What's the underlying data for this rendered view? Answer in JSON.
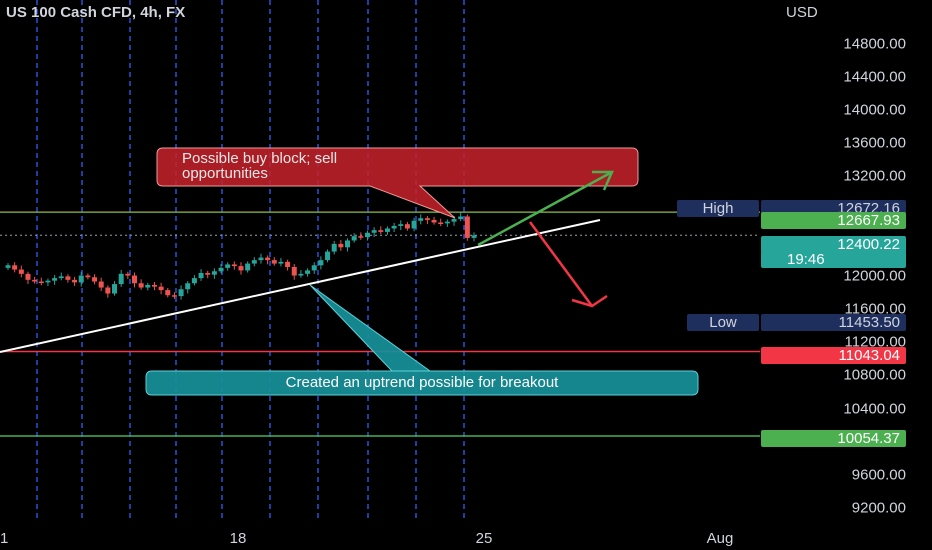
{
  "header": {
    "title": "US 100 Cash CFD, 4h, FX",
    "currency": "USD"
  },
  "colors": {
    "background": "#000000",
    "up": "#26a69a",
    "down": "#ef5350",
    "high_line": "#f59d2c",
    "low_line": "#f23645",
    "support_line": "#4caf50",
    "trend_line": "#ffffff",
    "grid": "#2962ff",
    "label_navy": "#1e2f5e"
  },
  "y_axis": {
    "ticks": [
      "14800.00",
      "14400.00",
      "14000.00",
      "13600.00",
      "13200.00",
      "12000.00",
      "11600.00",
      "11200.00",
      "10800.00",
      "10400.00",
      "9600.00",
      "9200.00"
    ],
    "visible_range": [
      9050,
      15150
    ]
  },
  "x_axis": {
    "ticks": [
      "1",
      "18",
      "25",
      "Aug"
    ]
  },
  "price_labels": {
    "high": {
      "tag": "High",
      "value": "12672.16"
    },
    "second_high": {
      "value": "12667.93"
    },
    "current": {
      "value": "12400.22",
      "countdown": "19:46"
    },
    "low": {
      "tag": "Low",
      "value": "11453.50"
    },
    "red_level": {
      "value": "11043.04"
    },
    "green_level": {
      "value": "10054.37"
    }
  },
  "annotations": {
    "buy_block": "Possible buy block; sell opportunities",
    "uptrend": "Created an uptrend possible for breakout"
  },
  "chart_data": {
    "type": "candlestick",
    "title": "US 100 Cash CFD, 4h, FX",
    "ylabel": "USD",
    "ylim": [
      9050,
      15150
    ],
    "grid": "dashed vertical session lines",
    "candles_close": [
      12050,
      12000,
      11950,
      11880,
      11860,
      11850,
      11870,
      11900,
      11920,
      11880,
      11850,
      11930,
      11910,
      11860,
      11790,
      11720,
      11830,
      11950,
      11930,
      11840,
      11790,
      11820,
      11800,
      11760,
      11700,
      11690,
      11770,
      11840,
      11900,
      11960,
      11940,
      11980,
      12020,
      12060,
      12040,
      11990,
      12070,
      12110,
      12140,
      12110,
      12070,
      12090,
      12030,
      11930,
      11950,
      11990,
      12050,
      12110,
      12210,
      12300,
      12260,
      12340,
      12390,
      12380,
      12430,
      12460,
      12440,
      12480,
      12510,
      12530,
      12480,
      12570,
      12600,
      12580,
      12550,
      12540,
      12560,
      12590,
      12620,
      12370,
      12400
    ],
    "horizontal_levels": [
      12672.16,
      12667.93,
      12400.22,
      11453.5,
      11043.04,
      10054.37
    ],
    "annotations": [
      "Possible buy block; sell opportunities",
      "Created an uptrend possible for breakout"
    ]
  }
}
